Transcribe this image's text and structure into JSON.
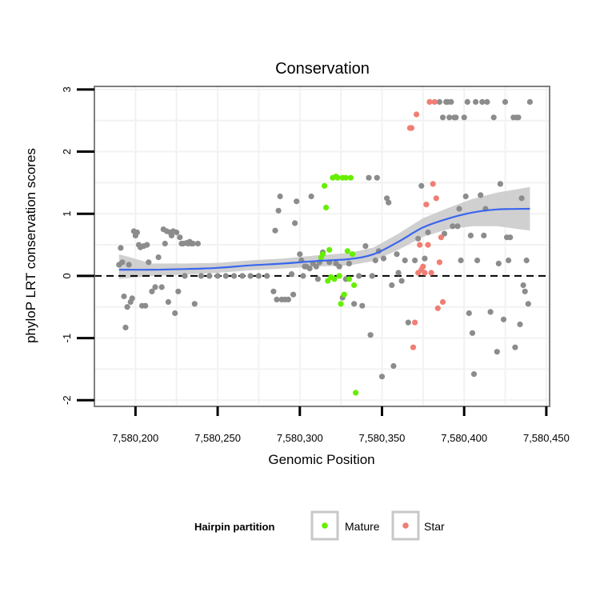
{
  "chart_data": {
    "type": "scatter",
    "title": "Conservation",
    "xlabel": "Genomic Position",
    "ylabel": "phyloP LRT conservation scores",
    "xlim": [
      7580175,
      7580452
    ],
    "ylim": [
      -2.1,
      3.05
    ],
    "x_ticks": [
      7580200,
      7580250,
      7580300,
      7580350,
      7580400,
      7580450
    ],
    "x_tick_labels": [
      "7,580,200",
      "7,580,250",
      "7,580,300",
      "7,580,350",
      "7,580,400",
      "7,580,450"
    ],
    "y_ticks": [
      -2,
      -1,
      0,
      1,
      2,
      3
    ],
    "y_tick_labels": [
      "-2",
      "-1",
      "0",
      "1",
      "2",
      "3"
    ],
    "reference_line": {
      "y": 0,
      "style": "dashed",
      "color": "#000000"
    },
    "legend": {
      "title": "Hairpin partition",
      "entries": [
        {
          "label": "Mature",
          "color": "#66ee00"
        },
        {
          "label": "Star",
          "color": "#f07e73"
        }
      ]
    },
    "colors": {
      "other": "#8c8c8c",
      "mature": "#66ee00",
      "star": "#f07e73",
      "smooth": "#3a66ee",
      "band": "#c8c8c8",
      "panel_border": "#7f7f7f",
      "grid": "#f2f2f2"
    },
    "series": [
      {
        "name": "Other",
        "color": "#8c8c8c",
        "points": [
          [
            7580190,
            0.18
          ],
          [
            7580191,
            0.45
          ],
          [
            7580192,
            0.22
          ],
          [
            7580193,
            -0.33
          ],
          [
            7580194,
            -0.83
          ],
          [
            7580195,
            -0.5
          ],
          [
            7580196,
            0.18
          ],
          [
            7580197,
            -0.42
          ],
          [
            7580198,
            -0.36
          ],
          [
            7580199,
            0.72
          ],
          [
            7580200,
            0.65
          ],
          [
            7580201,
            0.7
          ],
          [
            7580202,
            0.5
          ],
          [
            7580203,
            0.46
          ],
          [
            7580204,
            -0.48
          ],
          [
            7580205,
            0.48
          ],
          [
            7580206,
            -0.48
          ],
          [
            7580207,
            0.5
          ],
          [
            7580208,
            0.22
          ],
          [
            7580210,
            -0.25
          ],
          [
            7580212,
            -0.18
          ],
          [
            7580214,
            0.3
          ],
          [
            7580216,
            -0.18
          ],
          [
            7580217,
            0.75
          ],
          [
            7580218,
            0.52
          ],
          [
            7580219,
            0.72
          ],
          [
            7580220,
            -0.42
          ],
          [
            7580221,
            0.7
          ],
          [
            7580222,
            0.65
          ],
          [
            7580223,
            0.72
          ],
          [
            7580224,
            -0.6
          ],
          [
            7580225,
            0.7
          ],
          [
            7580226,
            -0.25
          ],
          [
            7580227,
            0.62
          ],
          [
            7580228,
            0.52
          ],
          [
            7580229,
            0.52
          ],
          [
            7580230,
            0.0
          ],
          [
            7580231,
            0.53
          ],
          [
            7580232,
            0.52
          ],
          [
            7580233,
            0.55
          ],
          [
            7580234,
            0.52
          ],
          [
            7580235,
            0.52
          ],
          [
            7580236,
            -0.45
          ],
          [
            7580238,
            0.52
          ],
          [
            7580240,
            0.0
          ],
          [
            7580245,
            0.0
          ],
          [
            7580250,
            0.0
          ],
          [
            7580255,
            0.0
          ],
          [
            7580260,
            0.0
          ],
          [
            7580265,
            0.0
          ],
          [
            7580270,
            0.0
          ],
          [
            7580275,
            0.0
          ],
          [
            7580280,
            0.0
          ],
          [
            7580284,
            -0.25
          ],
          [
            7580285,
            0.73
          ],
          [
            7580286,
            -0.38
          ],
          [
            7580287,
            1.05
          ],
          [
            7580288,
            1.28
          ],
          [
            7580289,
            -0.38
          ],
          [
            7580291,
            -0.38
          ],
          [
            7580293,
            -0.38
          ],
          [
            7580295,
            0.03
          ],
          [
            7580296,
            -0.3
          ],
          [
            7580297,
            0.85
          ],
          [
            7580298,
            1.2
          ],
          [
            7580300,
            0.35
          ],
          [
            7580301,
            0.25
          ],
          [
            7580302,
            0.0
          ],
          [
            7580303,
            0.15
          ],
          [
            7580304,
            0.15
          ],
          [
            7580306,
            0.12
          ],
          [
            7580307,
            1.28
          ],
          [
            7580308,
            0.2
          ],
          [
            7580310,
            0.15
          ],
          [
            7580311,
            -0.05
          ],
          [
            7580312,
            0.22
          ],
          [
            7580314,
            0.38
          ],
          [
            7580318,
            0.22
          ],
          [
            7580322,
            0.2
          ],
          [
            7580324,
            0.15
          ],
          [
            7580326,
            -0.35
          ],
          [
            7580328,
            -0.05
          ],
          [
            7580330,
            0.2
          ],
          [
            7580333,
            -0.45
          ],
          [
            7580336,
            0.0
          ],
          [
            7580338,
            -0.48
          ],
          [
            7580340,
            0.48
          ],
          [
            7580342,
            1.58
          ],
          [
            7580343,
            -0.95
          ],
          [
            7580344,
            0.0
          ],
          [
            7580346,
            0.25
          ],
          [
            7580347,
            1.58
          ],
          [
            7580348,
            0.4
          ],
          [
            7580350,
            -1.62
          ],
          [
            7580351,
            0.28
          ],
          [
            7580353,
            1.25
          ],
          [
            7580354,
            1.18
          ],
          [
            7580356,
            -0.15
          ],
          [
            7580357,
            -1.45
          ],
          [
            7580359,
            0.35
          ],
          [
            7580360,
            0.05
          ],
          [
            7580362,
            -0.08
          ],
          [
            7580364,
            0.25
          ],
          [
            7580366,
            -0.75
          ],
          [
            7580370,
            0.25
          ],
          [
            7580372,
            0.6
          ],
          [
            7580374,
            1.45
          ],
          [
            7580376,
            0.28
          ],
          [
            7580378,
            0.7
          ],
          [
            7580385,
            2.8
          ],
          [
            7580387,
            2.55
          ],
          [
            7580388,
            0.68
          ],
          [
            7580389,
            2.8
          ],
          [
            7580390,
            2.8
          ],
          [
            7580391,
            2.55
          ],
          [
            7580392,
            2.8
          ],
          [
            7580393,
            0.8
          ],
          [
            7580394,
            2.55
          ],
          [
            7580395,
            2.55
          ],
          [
            7580396,
            0.8
          ],
          [
            7580397,
            1.08
          ],
          [
            7580398,
            0.25
          ],
          [
            7580400,
            2.55
          ],
          [
            7580401,
            1.28
          ],
          [
            7580402,
            2.8
          ],
          [
            7580403,
            -0.6
          ],
          [
            7580404,
            0.65
          ],
          [
            7580405,
            -0.92
          ],
          [
            7580406,
            -1.58
          ],
          [
            7580407,
            2.8
          ],
          [
            7580408,
            0.25
          ],
          [
            7580410,
            1.3
          ],
          [
            7580411,
            2.8
          ],
          [
            7580412,
            0.65
          ],
          [
            7580413,
            1.08
          ],
          [
            7580414,
            2.8
          ],
          [
            7580416,
            -0.58
          ],
          [
            7580418,
            2.55
          ],
          [
            7580420,
            -1.22
          ],
          [
            7580421,
            0.2
          ],
          [
            7580422,
            1.48
          ],
          [
            7580424,
            -0.7
          ],
          [
            7580425,
            2.8
          ],
          [
            7580426,
            0.62
          ],
          [
            7580427,
            0.25
          ],
          [
            7580428,
            0.62
          ],
          [
            7580430,
            2.55
          ],
          [
            7580431,
            -1.15
          ],
          [
            7580432,
            2.55
          ],
          [
            7580433,
            2.55
          ],
          [
            7580434,
            -0.78
          ],
          [
            7580435,
            1.25
          ],
          [
            7580436,
            -0.15
          ],
          [
            7580437,
            -0.25
          ],
          [
            7580438,
            0.25
          ],
          [
            7580439,
            -0.45
          ],
          [
            7580440,
            2.8
          ]
        ]
      },
      {
        "name": "Mature",
        "color": "#66ee00",
        "points": [
          [
            7580313,
            0.3
          ],
          [
            7580314,
            0.35
          ],
          [
            7580315,
            1.45
          ],
          [
            7580316,
            1.1
          ],
          [
            7580317,
            -0.08
          ],
          [
            7580318,
            0.42
          ],
          [
            7580319,
            -0.02
          ],
          [
            7580320,
            1.58
          ],
          [
            7580321,
            -0.05
          ],
          [
            7580322,
            1.6
          ],
          [
            7580323,
            1.58
          ],
          [
            7580324,
            0.0
          ],
          [
            7580325,
            -0.45
          ],
          [
            7580326,
            1.58
          ],
          [
            7580327,
            -0.3
          ],
          [
            7580328,
            1.58
          ],
          [
            7580329,
            0.4
          ],
          [
            7580330,
            -0.05
          ],
          [
            7580331,
            1.58
          ],
          [
            7580332,
            0.35
          ],
          [
            7580333,
            -0.15
          ],
          [
            7580334,
            -1.88
          ]
        ]
      },
      {
        "name": "Star",
        "color": "#f07e73",
        "points": [
          [
            7580367,
            2.38
          ],
          [
            7580368,
            2.38
          ],
          [
            7580369,
            -1.15
          ],
          [
            7580370,
            -0.75
          ],
          [
            7580371,
            2.6
          ],
          [
            7580372,
            0.05
          ],
          [
            7580373,
            0.5
          ],
          [
            7580374,
            0.1
          ],
          [
            7580375,
            0.15
          ],
          [
            7580376,
            0.05
          ],
          [
            7580377,
            1.15
          ],
          [
            7580378,
            0.5
          ],
          [
            7580379,
            2.8
          ],
          [
            7580380,
            0.05
          ],
          [
            7580381,
            1.48
          ],
          [
            7580382,
            2.8
          ],
          [
            7580383,
            1.25
          ],
          [
            7580384,
            -0.52
          ],
          [
            7580385,
            0.22
          ],
          [
            7580386,
            0.62
          ],
          [
            7580387,
            -0.42
          ]
        ]
      }
    ],
    "smooth": {
      "x": [
        7580190,
        7580210,
        7580230,
        7580250,
        7580270,
        7580290,
        7580310,
        7580330,
        7580345,
        7580360,
        7580375,
        7580390,
        7580405,
        7580420,
        7580440
      ],
      "y": [
        0.1,
        0.1,
        0.11,
        0.13,
        0.17,
        0.2,
        0.24,
        0.27,
        0.35,
        0.55,
        0.78,
        0.92,
        1.02,
        1.07,
        1.08
      ],
      "lower": [
        -0.05,
        0.0,
        0.02,
        0.05,
        0.09,
        0.12,
        0.15,
        0.17,
        0.24,
        0.42,
        0.63,
        0.75,
        0.8,
        0.8,
        0.73
      ],
      "upper": [
        0.35,
        0.2,
        0.2,
        0.21,
        0.25,
        0.28,
        0.33,
        0.37,
        0.46,
        0.68,
        0.93,
        1.09,
        1.24,
        1.34,
        1.43
      ]
    }
  }
}
